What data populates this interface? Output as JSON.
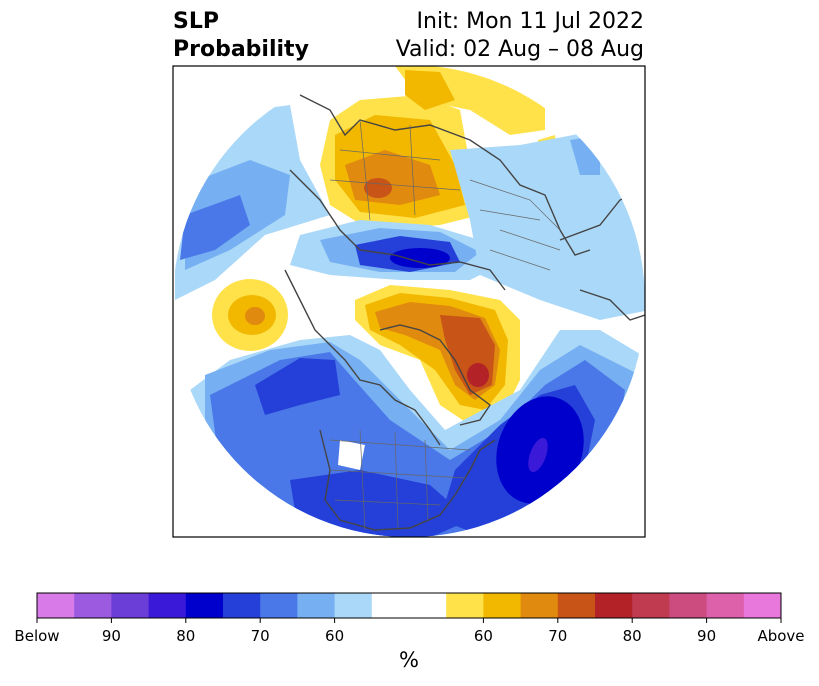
{
  "title": {
    "left_line1": "SLP",
    "left_line2": "Probability",
    "right_line1": "Init: Mon 11 Jul 2022",
    "right_line2": "Valid: 02 Aug – 08 Aug"
  },
  "colorbar": {
    "unit": "%",
    "colors": [
      "#d87ae8",
      "#9b5ae0",
      "#6b3ed8",
      "#3a1ad8",
      "#0000cc",
      "#2440d8",
      "#4a78e8",
      "#76b0f2",
      "#aad8f8",
      "#ffffff",
      "#ffffff",
      "#ffe24a",
      "#f2b800",
      "#e08a10",
      "#c85418",
      "#b22226",
      "#c03a50",
      "#cc4c80",
      "#dc60aa",
      "#e878dc"
    ],
    "ticks": [
      "Below",
      "90",
      "80",
      "70",
      "60",
      "60",
      "70",
      "80",
      "90",
      "Above"
    ]
  },
  "map": {
    "projection": "north polar stereographic",
    "colors": {
      "below_light": "#aad8f8",
      "below_mid": "#76b0f2",
      "below_strong": "#4a78e8",
      "below_stronger": "#2440d8",
      "below_strongest": "#0000cc",
      "above_light": "#ffe24a",
      "above_mid": "#f2b800",
      "above_strong": "#e08a10",
      "above_stronger": "#c85418",
      "above_strongest": "#b22226",
      "coast": "#444444"
    }
  }
}
